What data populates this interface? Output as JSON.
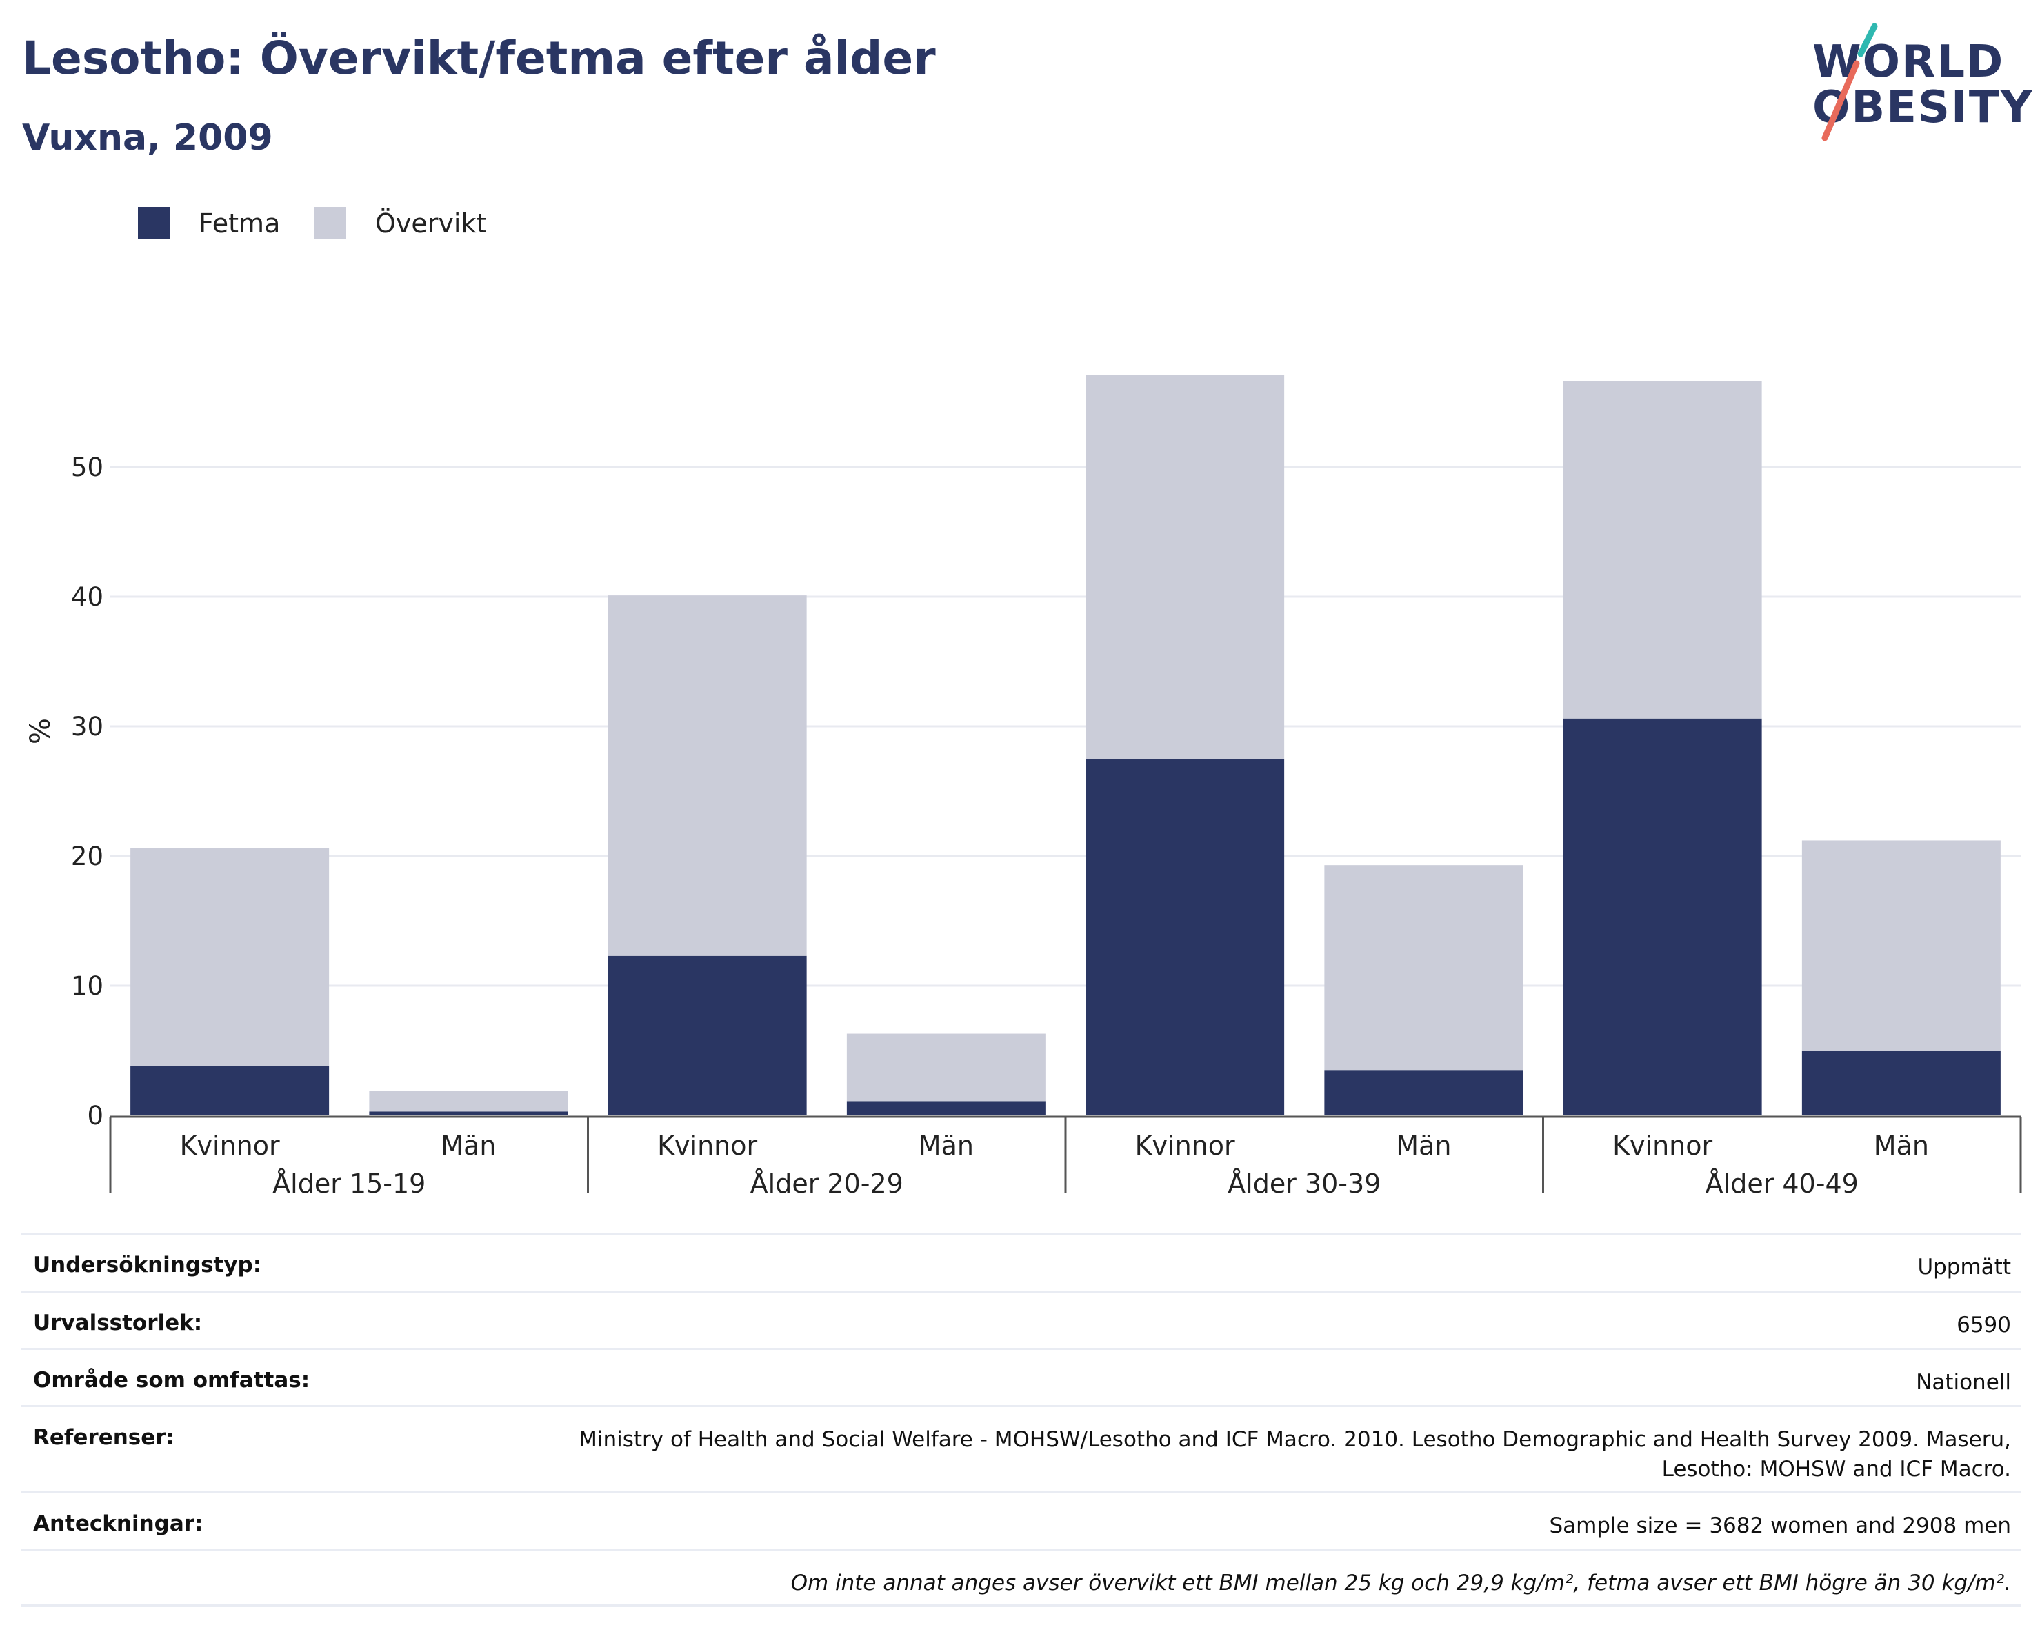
{
  "title": "Lesotho: Övervikt/fetma efter ålder",
  "subtitle": "Vuxna, 2009",
  "logo": {
    "line1": "WORLD",
    "line2": "OBESITY",
    "accent_colors": [
      "#2fb8b0",
      "#e86a5b"
    ]
  },
  "colors": {
    "fetma": "#2a3663",
    "overvikt": "#cbcdd9",
    "text_dark": "#2a3663"
  },
  "chart_data": {
    "type": "bar",
    "stacked": true,
    "ylabel": "%",
    "ylim": [
      0,
      60
    ],
    "yticks": [
      0,
      10,
      20,
      30,
      40,
      50
    ],
    "grid": true,
    "legend_position": "top-left",
    "groups": [
      "Ålder 15-19",
      "Ålder 20-29",
      "Ålder 30-39",
      "Ålder 40-49"
    ],
    "categories": [
      "Kvinnor",
      "Män",
      "Kvinnor",
      "Män",
      "Kvinnor",
      "Män",
      "Kvinnor",
      "Män"
    ],
    "series": [
      {
        "name": "Fetma",
        "values": [
          3.8,
          0.3,
          12.3,
          1.1,
          27.5,
          3.5,
          30.6,
          5.0
        ]
      },
      {
        "name": "Övervikt",
        "values": [
          16.8,
          1.6,
          27.8,
          5.2,
          29.6,
          15.8,
          26.0,
          16.2
        ]
      }
    ]
  },
  "meta": [
    {
      "label": "Undersökningstyp:",
      "value": "Uppmätt"
    },
    {
      "label": "Urvalsstorlek:",
      "value": "6590"
    },
    {
      "label": "Område som omfattas:",
      "value": "Nationell"
    },
    {
      "label": "Referenser:",
      "value": "Ministry of Health and Social Welfare - MOHSW/Lesotho and ICF Macro. 2010. Lesotho Demographic and Health Survey 2009. Maseru, Lesotho: MOHSW and ICF Macro."
    },
    {
      "label": "Anteckningar:",
      "value": "Sample size = 3682 women and 2908 men"
    },
    {
      "label": "",
      "value": "Om inte annat anges avser övervikt ett BMI mellan 25 kg och 29,9 kg/m², fetma avser ett BMI högre än 30 kg/m²."
    }
  ]
}
